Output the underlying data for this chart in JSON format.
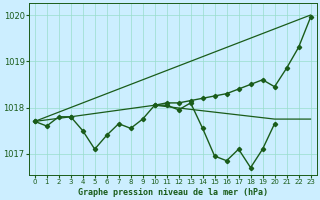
{
  "title": "Graphe pression niveau de la mer (hPa)",
  "bg_color": "#cceeff",
  "grid_color": "#99ddcc",
  "line_color": "#1a5c1a",
  "xlim": [
    -0.5,
    23.5
  ],
  "ylim": [
    1016.55,
    1020.25
  ],
  "yticks": [
    1017,
    1018,
    1019,
    1020
  ],
  "xticks": [
    0,
    1,
    2,
    3,
    4,
    5,
    6,
    7,
    8,
    9,
    10,
    11,
    12,
    13,
    14,
    15,
    16,
    17,
    18,
    19,
    20,
    21,
    22,
    23
  ],
  "series": [
    {
      "x": [
        0,
        23
      ],
      "y": [
        1017.7,
        1020.0
      ],
      "marker": false,
      "linewidth": 0.9
    },
    {
      "x": [
        0,
        1,
        2,
        3,
        4,
        5,
        6,
        7,
        8,
        9,
        10,
        11,
        12,
        13,
        14,
        15,
        16,
        17,
        18,
        19,
        20,
        21,
        22,
        23
      ],
      "y": [
        1017.7,
        null,
        null,
        1017.8,
        null,
        null,
        null,
        null,
        null,
        null,
        1018.05,
        1018.1,
        1018.1,
        1018.15,
        1018.2,
        1018.25,
        1018.3,
        1018.4,
        1018.5,
        1018.6,
        1018.45,
        1018.85,
        1019.3,
        1019.95
      ],
      "marker": true,
      "linewidth": 1.0
    },
    {
      "x": [
        0,
        3,
        10,
        20,
        23
      ],
      "y": [
        1017.7,
        1017.8,
        1018.05,
        1017.75,
        1017.75
      ],
      "marker": false,
      "linewidth": 0.9
    },
    {
      "x": [
        0,
        1,
        2,
        3,
        4,
        5,
        6,
        7,
        8,
        9,
        10,
        11,
        12,
        13,
        14,
        15,
        16,
        17,
        18,
        19,
        20,
        21,
        22,
        23
      ],
      "y": [
        1017.7,
        1017.6,
        1017.8,
        1017.8,
        1017.5,
        1017.1,
        1017.4,
        1017.65,
        1017.55,
        1017.75,
        1018.05,
        1018.05,
        1017.95,
        1018.1,
        1017.55,
        1016.95,
        1016.85,
        1017.1,
        1016.7,
        1017.1,
        1017.65,
        null,
        null,
        null
      ],
      "marker": true,
      "linewidth": 1.0
    }
  ]
}
